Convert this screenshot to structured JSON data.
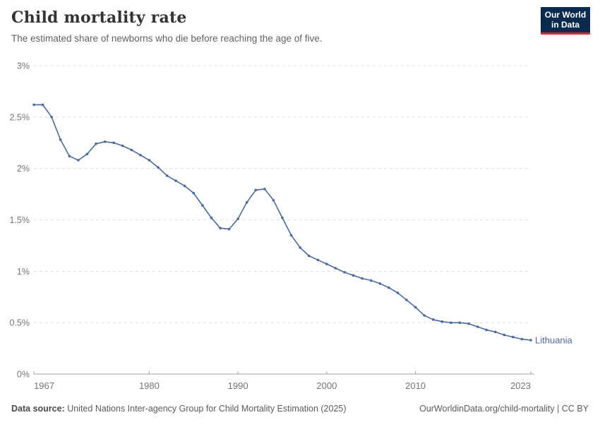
{
  "header": {
    "title": "Child mortality rate",
    "subtitle": "The estimated share of newborns who die before reaching the age of five.",
    "logo": {
      "line1": "Our World",
      "line2": "in Data"
    }
  },
  "footer": {
    "source_label": "Data source:",
    "source_text": " United Nations Inter-agency Group for Child Mortality Estimation (2025)",
    "right_text": "OurWorldinData.org/child-mortality | CC BY"
  },
  "colors": {
    "line": "#4C6A9C",
    "series_label": "#4C6A9C",
    "grid": "#DCDCDC",
    "axis": "#A3A3A3",
    "tick_label": "#757575",
    "logo_bg": "#0A2A4E",
    "logo_red": "#C9353B"
  },
  "chart_data": {
    "type": "line",
    "title": "Child mortality rate",
    "subtitle": "The estimated share of newborns who die before reaching the age of five.",
    "xlabel": "",
    "ylabel": "",
    "unit": "%",
    "grid": true,
    "legend_position": "end-of-line",
    "xlim": [
      1967,
      2023
    ],
    "ylim": [
      0,
      3
    ],
    "xticks": [
      1967,
      1980,
      1990,
      2000,
      2010,
      2023
    ],
    "ytick_values": [
      0,
      0.5,
      1,
      1.5,
      2,
      2.5,
      3
    ],
    "ytick_labels": [
      "0%",
      "0.5%",
      "1%",
      "1.5%",
      "2%",
      "2.5%",
      "3%"
    ],
    "x": [
      1967,
      1968,
      1969,
      1970,
      1971,
      1972,
      1973,
      1974,
      1975,
      1976,
      1977,
      1978,
      1979,
      1980,
      1981,
      1982,
      1983,
      1984,
      1985,
      1986,
      1987,
      1988,
      1989,
      1990,
      1991,
      1992,
      1993,
      1994,
      1995,
      1996,
      1997,
      1998,
      1999,
      2000,
      2001,
      2002,
      2003,
      2004,
      2005,
      2006,
      2007,
      2008,
      2009,
      2010,
      2011,
      2012,
      2013,
      2014,
      2015,
      2016,
      2017,
      2018,
      2019,
      2020,
      2021,
      2022,
      2023
    ],
    "series": [
      {
        "name": "Lithuania",
        "values": [
          2.62,
          2.62,
          2.5,
          2.28,
          2.12,
          2.08,
          2.14,
          2.24,
          2.26,
          2.25,
          2.22,
          2.18,
          2.13,
          2.08,
          2.01,
          1.93,
          1.88,
          1.83,
          1.76,
          1.64,
          1.52,
          1.42,
          1.41,
          1.51,
          1.67,
          1.79,
          1.8,
          1.69,
          1.52,
          1.35,
          1.23,
          1.15,
          1.11,
          1.07,
          1.03,
          0.99,
          0.96,
          0.93,
          0.91,
          0.88,
          0.84,
          0.79,
          0.72,
          0.65,
          0.57,
          0.53,
          0.51,
          0.5,
          0.5,
          0.49,
          0.46,
          0.43,
          0.41,
          0.38,
          0.36,
          0.34,
          0.33
        ]
      }
    ]
  }
}
